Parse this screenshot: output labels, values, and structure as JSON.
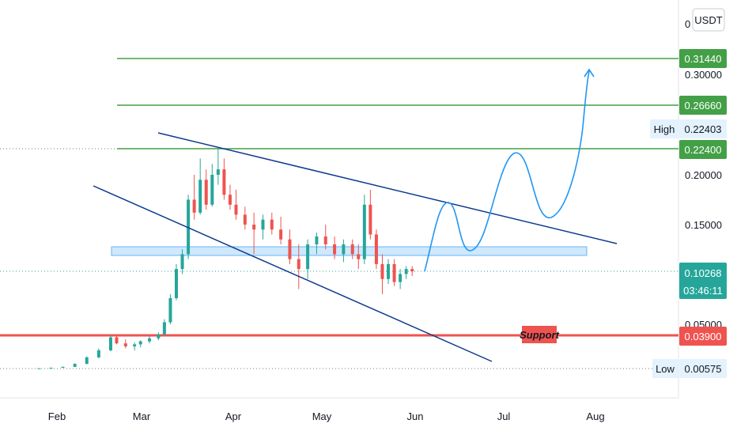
{
  "chart_data": {
    "type": "candlestick",
    "symbol_currency": "USDT",
    "x_ticks": [
      "Feb",
      "Mar",
      "Apr",
      "May",
      "Jun",
      "Jul",
      "Aug"
    ],
    "y_ticks": [
      "0.30000",
      "0.20000",
      "0.15000",
      "0.05000",
      "0"
    ],
    "last_price": {
      "value": "0.10268",
      "countdown": "03:46:11",
      "color": "#26a69a"
    },
    "horizontal_levels": [
      {
        "value": "0.31440",
        "color": "#43a047"
      },
      {
        "value": "0.26660",
        "color": "#43a047"
      },
      {
        "value": "0.22400",
        "color": "#43a047"
      },
      {
        "value": "0.03900",
        "color": "#ef5350",
        "label": "Support"
      }
    ],
    "high": {
      "label": "High",
      "value": "0.22403"
    },
    "low": {
      "label": "Low",
      "value": "0.00575"
    },
    "colors": {
      "up": "#26a69a",
      "down": "#ef5350",
      "trendline": "#0d3a8e",
      "projection": "#2196f3",
      "zone": "#bbdefb"
    },
    "candles": [
      {
        "date": "Jan 26",
        "o": 0.0058,
        "h": 0.0062,
        "l": 0.0056,
        "c": 0.0061
      },
      {
        "date": "Jan 30",
        "o": 0.0061,
        "h": 0.0068,
        "l": 0.0059,
        "c": 0.0066
      },
      {
        "date": "Feb 03",
        "o": 0.0066,
        "h": 0.0078,
        "l": 0.0064,
        "c": 0.0075
      },
      {
        "date": "Feb 07",
        "o": 0.0075,
        "h": 0.011,
        "l": 0.0072,
        "c": 0.0105
      },
      {
        "date": "Feb 11",
        "o": 0.0105,
        "h": 0.018,
        "l": 0.01,
        "c": 0.017
      },
      {
        "date": "Feb 15",
        "o": 0.017,
        "h": 0.026,
        "l": 0.016,
        "c": 0.024
      },
      {
        "date": "Feb 19",
        "o": 0.024,
        "h": 0.039,
        "l": 0.023,
        "c": 0.037
      },
      {
        "date": "Feb 21",
        "o": 0.037,
        "h": 0.04,
        "l": 0.03,
        "c": 0.031
      },
      {
        "date": "Feb 24",
        "o": 0.031,
        "h": 0.035,
        "l": 0.026,
        "c": 0.028
      },
      {
        "date": "Feb 27",
        "o": 0.028,
        "h": 0.032,
        "l": 0.024,
        "c": 0.03
      },
      {
        "date": "Mar 01",
        "o": 0.03,
        "h": 0.034,
        "l": 0.027,
        "c": 0.033
      },
      {
        "date": "Mar 04",
        "o": 0.033,
        "h": 0.038,
        "l": 0.031,
        "c": 0.036
      },
      {
        "date": "Mar 07",
        "o": 0.036,
        "h": 0.042,
        "l": 0.034,
        "c": 0.04
      },
      {
        "date": "Mar 09",
        "o": 0.04,
        "h": 0.055,
        "l": 0.038,
        "c": 0.052
      },
      {
        "date": "Mar 11",
        "o": 0.052,
        "h": 0.08,
        "l": 0.05,
        "c": 0.076
      },
      {
        "date": "Mar 13",
        "o": 0.076,
        "h": 0.11,
        "l": 0.074,
        "c": 0.105
      },
      {
        "date": "Mar 15",
        "o": 0.105,
        "h": 0.125,
        "l": 0.1,
        "c": 0.12
      },
      {
        "date": "Mar 17",
        "o": 0.12,
        "h": 0.18,
        "l": 0.115,
        "c": 0.175
      },
      {
        "date": "Mar 19",
        "o": 0.175,
        "h": 0.2,
        "l": 0.155,
        "c": 0.162
      },
      {
        "date": "Mar 21",
        "o": 0.162,
        "h": 0.215,
        "l": 0.16,
        "c": 0.195
      },
      {
        "date": "Mar 23",
        "o": 0.195,
        "h": 0.205,
        "l": 0.165,
        "c": 0.17
      },
      {
        "date": "Mar 25",
        "o": 0.17,
        "h": 0.21,
        "l": 0.168,
        "c": 0.2
      },
      {
        "date": "Mar 27",
        "o": 0.2,
        "h": 0.224,
        "l": 0.19,
        "c": 0.205
      },
      {
        "date": "Mar 29",
        "o": 0.205,
        "h": 0.215,
        "l": 0.175,
        "c": 0.18
      },
      {
        "date": "Mar 31",
        "o": 0.18,
        "h": 0.19,
        "l": 0.165,
        "c": 0.17
      },
      {
        "date": "Apr 02",
        "o": 0.17,
        "h": 0.185,
        "l": 0.155,
        "c": 0.16
      },
      {
        "date": "Apr 05",
        "o": 0.16,
        "h": 0.168,
        "l": 0.145,
        "c": 0.15
      },
      {
        "date": "Apr 08",
        "o": 0.15,
        "h": 0.162,
        "l": 0.12,
        "c": 0.145
      },
      {
        "date": "Apr 11",
        "o": 0.145,
        "h": 0.16,
        "l": 0.135,
        "c": 0.155
      },
      {
        "date": "Apr 14",
        "o": 0.155,
        "h": 0.162,
        "l": 0.14,
        "c": 0.145
      },
      {
        "date": "Apr 17",
        "o": 0.145,
        "h": 0.158,
        "l": 0.13,
        "c": 0.135
      },
      {
        "date": "Apr 20",
        "o": 0.135,
        "h": 0.145,
        "l": 0.11,
        "c": 0.115
      },
      {
        "date": "Apr 23",
        "o": 0.115,
        "h": 0.13,
        "l": 0.085,
        "c": 0.105
      },
      {
        "date": "Apr 26",
        "o": 0.105,
        "h": 0.135,
        "l": 0.095,
        "c": 0.13
      },
      {
        "date": "Apr 29",
        "o": 0.13,
        "h": 0.142,
        "l": 0.12,
        "c": 0.138
      },
      {
        "date": "May 02",
        "o": 0.138,
        "h": 0.15,
        "l": 0.125,
        "c": 0.13
      },
      {
        "date": "May 05",
        "o": 0.13,
        "h": 0.138,
        "l": 0.115,
        "c": 0.12
      },
      {
        "date": "May 08",
        "o": 0.12,
        "h": 0.135,
        "l": 0.112,
        "c": 0.13
      },
      {
        "date": "May 11",
        "o": 0.13,
        "h": 0.135,
        "l": 0.115,
        "c": 0.12
      },
      {
        "date": "May 13",
        "o": 0.12,
        "h": 0.13,
        "l": 0.105,
        "c": 0.115
      },
      {
        "date": "May 15",
        "o": 0.115,
        "h": 0.18,
        "l": 0.11,
        "c": 0.17
      },
      {
        "date": "May 17",
        "o": 0.17,
        "h": 0.185,
        "l": 0.135,
        "c": 0.14
      },
      {
        "date": "May 19",
        "o": 0.14,
        "h": 0.145,
        "l": 0.105,
        "c": 0.11
      },
      {
        "date": "May 21",
        "o": 0.11,
        "h": 0.12,
        "l": 0.08,
        "c": 0.095
      },
      {
        "date": "May 23",
        "o": 0.095,
        "h": 0.115,
        "l": 0.09,
        "c": 0.11
      },
      {
        "date": "May 25",
        "o": 0.11,
        "h": 0.115,
        "l": 0.088,
        "c": 0.092
      },
      {
        "date": "May 27",
        "o": 0.092,
        "h": 0.105,
        "l": 0.085,
        "c": 0.1
      },
      {
        "date": "May 29",
        "o": 0.1,
        "h": 0.108,
        "l": 0.095,
        "c": 0.105
      },
      {
        "date": "May 31",
        "o": 0.105,
        "h": 0.108,
        "l": 0.098,
        "c": 0.1027
      }
    ]
  }
}
